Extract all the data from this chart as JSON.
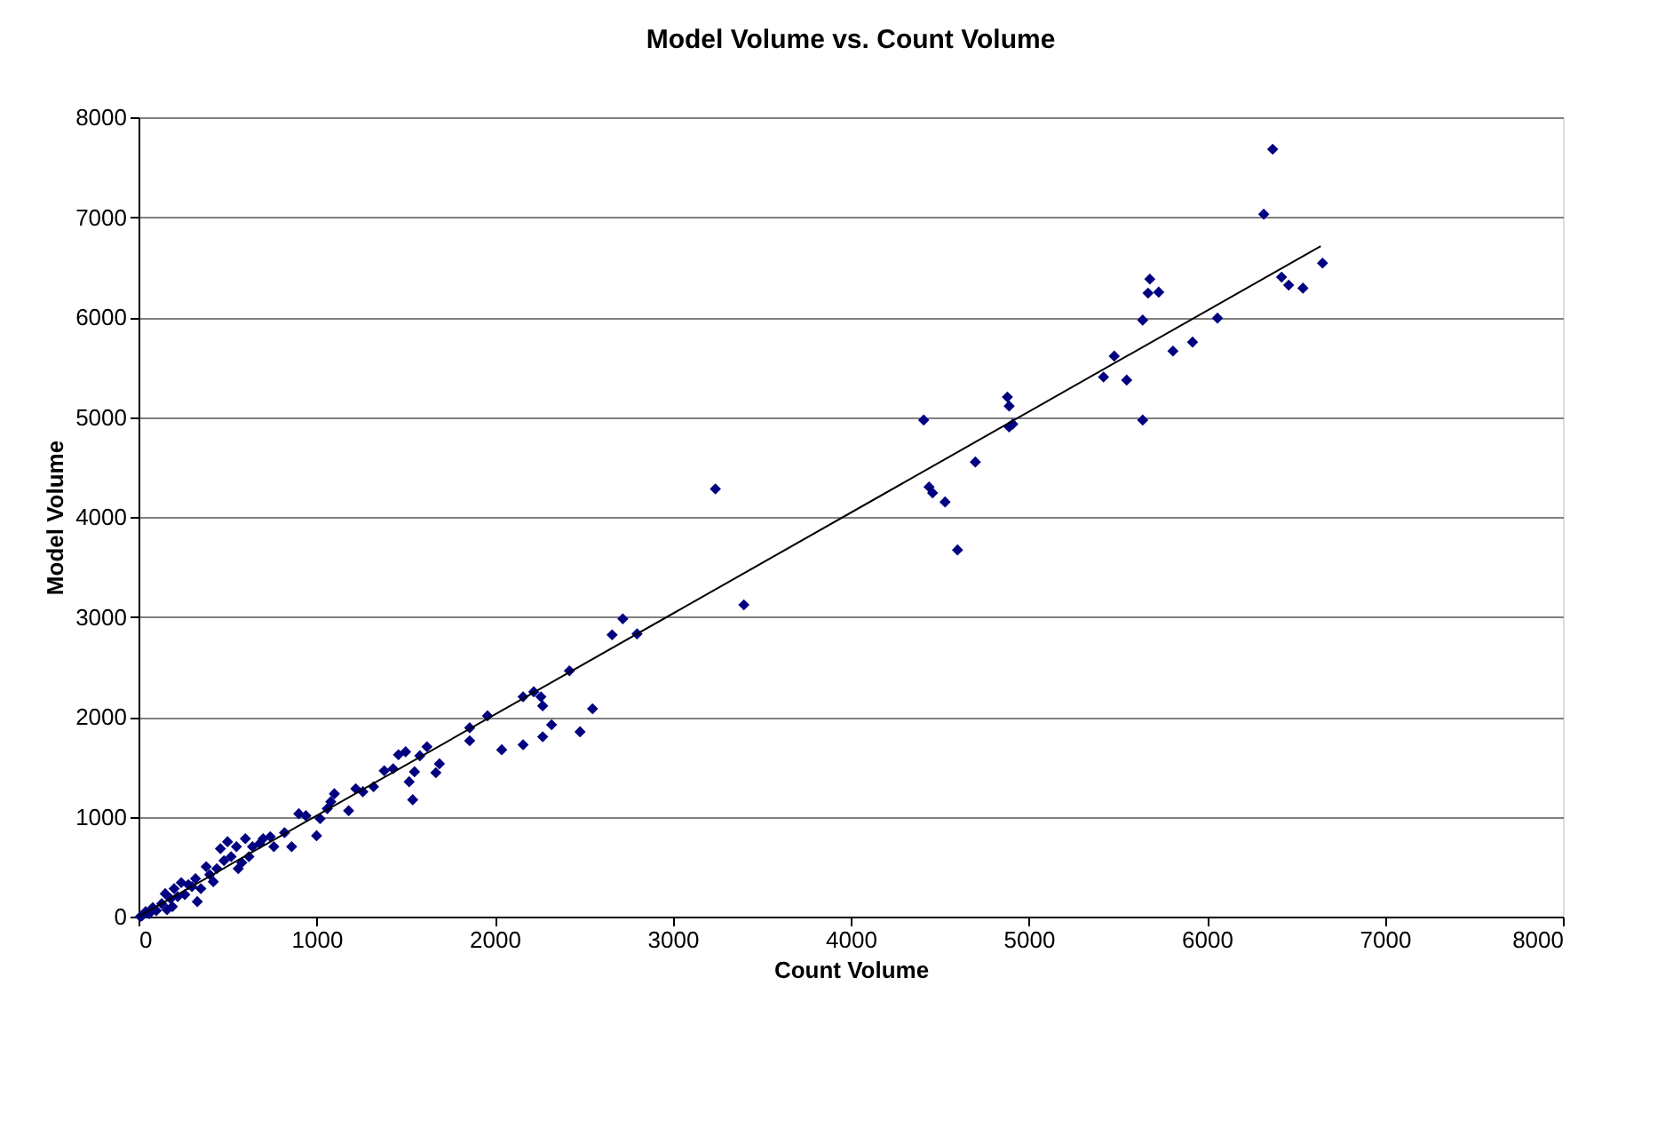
{
  "chart_data": {
    "type": "scatter",
    "title": "Model Volume vs. Count Volume",
    "xlabel": "Count Volume",
    "ylabel": "Model Volume",
    "xlim": [
      0,
      8000
    ],
    "xticks": [
      0,
      1000,
      2000,
      3000,
      4000,
      5000,
      6000,
      7000,
      8000
    ],
    "ylim": [
      0,
      8000
    ],
    "yticks": [
      0,
      1000,
      2000,
      3000,
      4000,
      5000,
      6000,
      7000,
      8000
    ],
    "grid": "y",
    "series": [
      {
        "color": "#000080",
        "marker": "diamond",
        "x": [
          6370,
          6320,
          6650,
          6420,
          6460,
          6540,
          5680,
          5670,
          5730,
          5640,
          6060,
          5920,
          5810,
          5480,
          5420,
          5550,
          5640,
          4880,
          4890,
          4910,
          4890,
          4700,
          4410,
          4440,
          4460,
          4530,
          4600,
          3240,
          3400,
          2800,
          2720,
          2660,
          2420,
          2550,
          2480,
          2320,
          2260,
          2220,
          2270,
          2270,
          2160,
          2160,
          2040,
          1960,
          1860,
          1860,
          1690,
          1670,
          1620,
          1580,
          1550,
          1520,
          1540,
          1500,
          1460,
          1430,
          1380,
          1320,
          1260,
          1220,
          1180,
          1100,
          1080,
          1060,
          1020,
          1000,
          940,
          900,
          860,
          820,
          760,
          740,
          700,
          680,
          640,
          620,
          600,
          580,
          560,
          550,
          520,
          500,
          480,
          460,
          440,
          420,
          400,
          380,
          350,
          330,
          320,
          300,
          280,
          260,
          240,
          220,
          200,
          190,
          180,
          160,
          150,
          130,
          100,
          80,
          60,
          40,
          20,
          10
        ],
        "values": [
          7680,
          7030,
          6540,
          6400,
          6320,
          6290,
          6380,
          6240,
          6250,
          5970,
          5990,
          5750,
          5660,
          5610,
          5400,
          5370,
          4970,
          5200,
          5110,
          4930,
          4900,
          4550,
          4970,
          4300,
          4240,
          4150,
          3670,
          4280,
          3120,
          2830,
          2980,
          2820,
          2460,
          2080,
          1850,
          1920,
          2200,
          2250,
          2110,
          1800,
          2200,
          1720,
          1670,
          2010,
          1890,
          1760,
          1530,
          1440,
          1700,
          1610,
          1450,
          1350,
          1170,
          1650,
          1620,
          1480,
          1460,
          1300,
          1250,
          1280,
          1060,
          1230,
          1150,
          1080,
          980,
          810,
          1010,
          1030,
          700,
          840,
          700,
          800,
          780,
          730,
          700,
          600,
          780,
          540,
          480,
          700,
          600,
          750,
          560,
          680,
          480,
          350,
          420,
          500,
          280,
          150,
          380,
          300,
          320,
          220,
          340,
          200,
          280,
          100,
          180,
          70,
          230,
          130,
          60,
          90,
          30,
          50,
          10,
          0
        ]
      },
      {
        "type": "line",
        "color": "#000000",
        "line_style": "solid",
        "x": [
          0,
          6640
        ],
        "values": [
          0,
          6710
        ]
      }
    ]
  }
}
